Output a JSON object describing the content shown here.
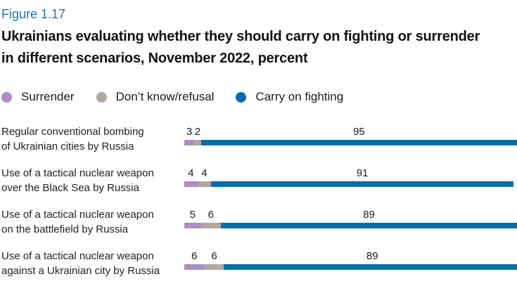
{
  "figure": {
    "label": "Figure 1.17",
    "title": "Ukrainians evaluating whether they should carry on fighting or surrender in different scenarios, November 2022, percent"
  },
  "colors": {
    "figure_label_blue": "#1a78b0",
    "surrender_purple": "#ad8bc4",
    "dont_know_gray": "#b2a79e",
    "carry_on_blue": "#006fa8",
    "text": "#1a1a1a"
  },
  "chart_data": {
    "type": "bar",
    "orientation": "horizontal",
    "stacked": true,
    "unit": "percent",
    "xlim": [
      0,
      100
    ],
    "grid": false,
    "legend_position": "top",
    "value_labels": true,
    "categories": [
      [
        "Regular conventional bombing",
        "of Ukrainian cities by Russia"
      ],
      [
        "Use of a tactical nuclear weapon",
        "over the Black Sea by Russia"
      ],
      [
        "Use of a tactical nuclear weapon",
        "on the battlefield by Russia"
      ],
      [
        "Use of a tactical nuclear weapon",
        "against a Ukrainian city by Russia"
      ]
    ],
    "series": [
      {
        "name": "Surrender",
        "color": "#ad8bc4",
        "values": [
          3,
          4,
          5,
          6
        ]
      },
      {
        "name": "Don’t know/refusal",
        "color": "#b2a79e",
        "values": [
          2,
          4,
          6,
          6
        ]
      },
      {
        "name": "Carry on fighting",
        "color": "#006fa8",
        "values": [
          95,
          91,
          89,
          89
        ]
      }
    ]
  }
}
